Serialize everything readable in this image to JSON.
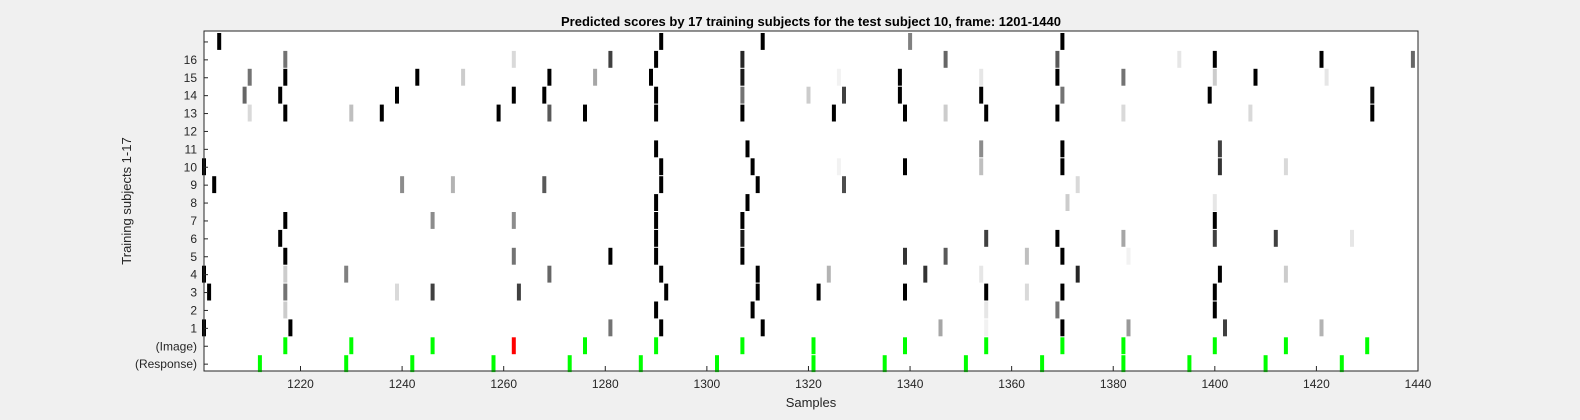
{
  "chart_data": {
    "type": "heatmap",
    "title": "Predicted scores by 17 training subjects for the test subject 10, frame: 1201-1440",
    "xlabel": "Samples",
    "ylabel": "Training subjects 1-17",
    "xlim": [
      1201,
      1440
    ],
    "x_ticks": [
      1220,
      1240,
      1260,
      1280,
      1300,
      1320,
      1340,
      1360,
      1380,
      1400,
      1420,
      1440
    ],
    "row_labels": [
      "",
      "16",
      "15",
      "14",
      "13",
      "12",
      "11",
      "10",
      "9",
      "8",
      "7",
      "6",
      "5",
      "4",
      "3",
      "2",
      "1",
      "(Image)",
      "(Response)"
    ],
    "grid": false,
    "colors": {
      "background": "#f0f0f0",
      "plot_background": "#ffffff",
      "image_marker": "#00ff00",
      "image_marker_highlight": "#ff0000",
      "response_marker": "#00ff00"
    },
    "score_rows": [
      {
        "row": "",
        "marks": [
          [
            1204,
            1.0
          ],
          [
            1291,
            1.0
          ],
          [
            1311,
            1.0
          ],
          [
            1340,
            0.5
          ],
          [
            1370,
            1.0
          ]
        ]
      },
      {
        "row": "16",
        "marks": [
          [
            1217,
            0.55
          ],
          [
            1262,
            0.15
          ],
          [
            1281,
            0.75
          ],
          [
            1290,
            1.0
          ],
          [
            1307,
            0.85
          ],
          [
            1347,
            0.6
          ],
          [
            1369,
            0.65
          ],
          [
            1393,
            0.1
          ],
          [
            1400,
            1.0
          ],
          [
            1421,
            1.0
          ],
          [
            1439,
            0.6
          ]
        ]
      },
      {
        "row": "15",
        "marks": [
          [
            1210,
            0.55
          ],
          [
            1217,
            1.0
          ],
          [
            1243,
            1.0
          ],
          [
            1252,
            0.2
          ],
          [
            1269,
            1.0
          ],
          [
            1278,
            0.35
          ],
          [
            1289,
            1.0
          ],
          [
            1307,
            0.9
          ],
          [
            1326,
            0.05
          ],
          [
            1338,
            1.0
          ],
          [
            1354,
            0.1
          ],
          [
            1369,
            1.0
          ],
          [
            1382,
            0.55
          ],
          [
            1400,
            0.2
          ],
          [
            1408,
            1.0
          ],
          [
            1422,
            0.1
          ]
        ]
      },
      {
        "row": "14",
        "marks": [
          [
            1209,
            0.6
          ],
          [
            1216,
            1.0
          ],
          [
            1239,
            1.0
          ],
          [
            1262,
            1.0
          ],
          [
            1268,
            1.0
          ],
          [
            1290,
            1.0
          ],
          [
            1307,
            0.55
          ],
          [
            1320,
            0.2
          ],
          [
            1327,
            0.75
          ],
          [
            1338,
            1.0
          ],
          [
            1354,
            1.0
          ],
          [
            1370,
            0.55
          ],
          [
            1399,
            1.0
          ],
          [
            1431,
            0.95
          ]
        ]
      },
      {
        "row": "13",
        "marks": [
          [
            1210,
            0.15
          ],
          [
            1217,
            1.0
          ],
          [
            1230,
            0.25
          ],
          [
            1236,
            1.0
          ],
          [
            1259,
            1.0
          ],
          [
            1269,
            0.65
          ],
          [
            1276,
            1.0
          ],
          [
            1290,
            1.0
          ],
          [
            1307,
            1.0
          ],
          [
            1325,
            1.0
          ],
          [
            1339,
            1.0
          ],
          [
            1347,
            0.2
          ],
          [
            1355,
            1.0
          ],
          [
            1369,
            1.0
          ],
          [
            1382,
            0.15
          ],
          [
            1407,
            0.15
          ],
          [
            1431,
            1.0
          ]
        ]
      },
      {
        "row": "12",
        "marks": []
      },
      {
        "row": "11",
        "marks": [
          [
            1290,
            1.0
          ],
          [
            1308,
            1.0
          ],
          [
            1354,
            0.45
          ],
          [
            1370,
            1.0
          ],
          [
            1401,
            0.75
          ]
        ]
      },
      {
        "row": "10",
        "marks": [
          [
            1201,
            1.0
          ],
          [
            1291,
            1.0
          ],
          [
            1309,
            1.0
          ],
          [
            1326,
            0.05
          ],
          [
            1339,
            1.0
          ],
          [
            1354,
            0.25
          ],
          [
            1370,
            1.0
          ],
          [
            1401,
            0.8
          ],
          [
            1414,
            0.15
          ]
        ]
      },
      {
        "row": "9",
        "marks": [
          [
            1203,
            1.0
          ],
          [
            1240,
            0.45
          ],
          [
            1250,
            0.3
          ],
          [
            1268,
            0.65
          ],
          [
            1291,
            1.0
          ],
          [
            1310,
            1.0
          ],
          [
            1327,
            0.7
          ],
          [
            1373,
            0.15
          ]
        ]
      },
      {
        "row": "8",
        "marks": [
          [
            1290,
            1.0
          ],
          [
            1308,
            1.0
          ],
          [
            1371,
            0.2
          ],
          [
            1400,
            0.1
          ]
        ]
      },
      {
        "row": "7",
        "marks": [
          [
            1217,
            1.0
          ],
          [
            1246,
            0.45
          ],
          [
            1262,
            0.45
          ],
          [
            1290,
            1.0
          ],
          [
            1307,
            1.0
          ],
          [
            1400,
            1.0
          ]
        ]
      },
      {
        "row": "6",
        "marks": [
          [
            1216,
            1.0
          ],
          [
            1290,
            1.0
          ],
          [
            1307,
            0.9
          ],
          [
            1355,
            0.75
          ],
          [
            1369,
            1.0
          ],
          [
            1382,
            0.35
          ],
          [
            1400,
            0.75
          ],
          [
            1412,
            0.75
          ],
          [
            1427,
            0.1
          ]
        ]
      },
      {
        "row": "5",
        "marks": [
          [
            1217,
            1.0
          ],
          [
            1262,
            0.55
          ],
          [
            1281,
            1.0
          ],
          [
            1290,
            1.0
          ],
          [
            1307,
            1.0
          ],
          [
            1339,
            0.8
          ],
          [
            1347,
            0.65
          ],
          [
            1363,
            0.25
          ],
          [
            1370,
            1.0
          ],
          [
            1383,
            0.05
          ]
        ]
      },
      {
        "row": "4",
        "marks": [
          [
            1201,
            1.0
          ],
          [
            1217,
            0.2
          ],
          [
            1229,
            0.5
          ],
          [
            1269,
            0.6
          ],
          [
            1291,
            1.0
          ],
          [
            1310,
            1.0
          ],
          [
            1324,
            0.3
          ],
          [
            1343,
            0.8
          ],
          [
            1354,
            0.1
          ],
          [
            1373,
            0.85
          ],
          [
            1401,
            1.0
          ],
          [
            1414,
            0.2
          ]
        ]
      },
      {
        "row": "3",
        "marks": [
          [
            1202,
            1.0
          ],
          [
            1217,
            0.55
          ],
          [
            1239,
            0.15
          ],
          [
            1246,
            0.75
          ],
          [
            1263,
            0.75
          ],
          [
            1292,
            1.0
          ],
          [
            1310,
            1.0
          ],
          [
            1322,
            1.0
          ],
          [
            1339,
            1.0
          ],
          [
            1355,
            1.0
          ],
          [
            1363,
            0.15
          ],
          [
            1370,
            1.0
          ],
          [
            1400,
            1.0
          ]
        ]
      },
      {
        "row": "2",
        "marks": [
          [
            1217,
            0.2
          ],
          [
            1290,
            1.0
          ],
          [
            1309,
            1.0
          ],
          [
            1355,
            0.1
          ],
          [
            1369,
            0.55
          ],
          [
            1400,
            1.0
          ]
        ]
      },
      {
        "row": "1",
        "marks": [
          [
            1201,
            1.0
          ],
          [
            1218,
            1.0
          ],
          [
            1281,
            0.55
          ],
          [
            1291,
            1.0
          ],
          [
            1311,
            1.0
          ],
          [
            1346,
            0.35
          ],
          [
            1355,
            0.05
          ],
          [
            1370,
            1.0
          ],
          [
            1383,
            0.4
          ],
          [
            1402,
            0.75
          ],
          [
            1421,
            0.3
          ]
        ]
      }
    ],
    "image_events": [
      1217,
      1230,
      1246,
      1262,
      1276,
      1290,
      1307,
      1321,
      1339,
      1355,
      1370,
      1382,
      1400,
      1414,
      1430
    ],
    "image_event_highlight": 1262,
    "response_events": [
      1212,
      1229,
      1242,
      1258,
      1273,
      1287,
      1302,
      1321,
      1335,
      1351,
      1366,
      1382,
      1395,
      1410,
      1425
    ]
  }
}
